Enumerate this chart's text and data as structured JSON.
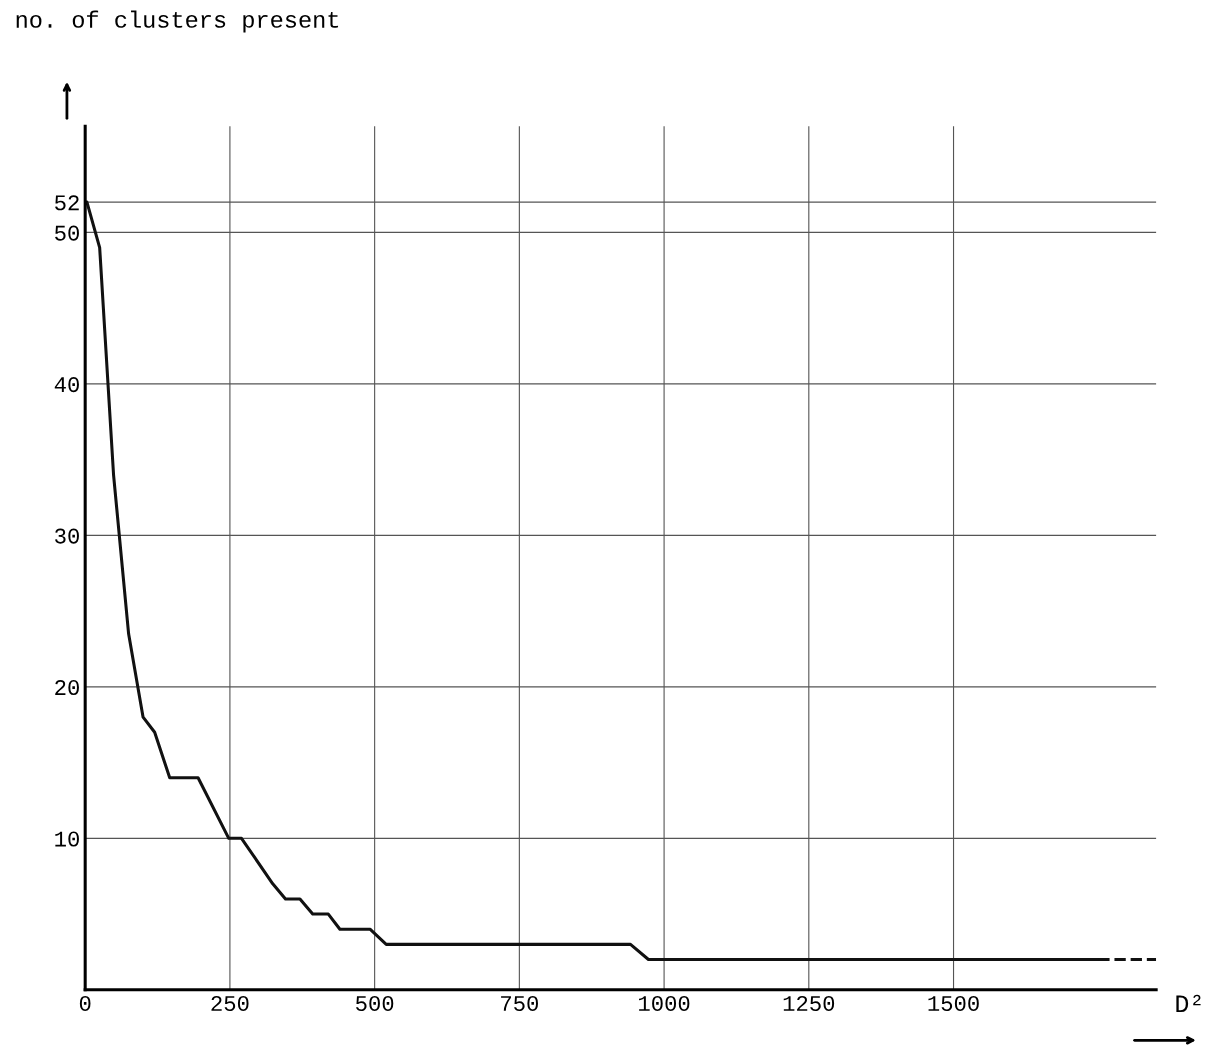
{
  "chart_data": {
    "type": "line",
    "ylabel": "no. of clusters present",
    "xlabel": "D²",
    "series": [
      {
        "color": "#111111",
        "line_style": "solid",
        "x": [
          0,
          3,
          25,
          49,
          75,
          100,
          120,
          146,
          195,
          248,
          270,
          324,
          346,
          371,
          393,
          420,
          440,
          492,
          520,
          942,
          973,
          1750
        ],
        "values": [
          52,
          52,
          49,
          34,
          23.5,
          18,
          17,
          14,
          14,
          10,
          10,
          7,
          6,
          6,
          5,
          5,
          4,
          4,
          3,
          3,
          2,
          2
        ]
      },
      {
        "color": "#111111",
        "line_style": "dashed",
        "x": [
          1750,
          1850
        ],
        "values": [
          2,
          2
        ]
      }
    ],
    "xlim": [
      0,
      1850
    ],
    "xticks": [
      0,
      250,
      500,
      750,
      1000,
      1250,
      1500
    ],
    "ylim": [
      0,
      57
    ],
    "yticks": [
      10,
      20,
      30,
      40,
      50,
      52
    ],
    "grid": true,
    "marker": "none"
  }
}
